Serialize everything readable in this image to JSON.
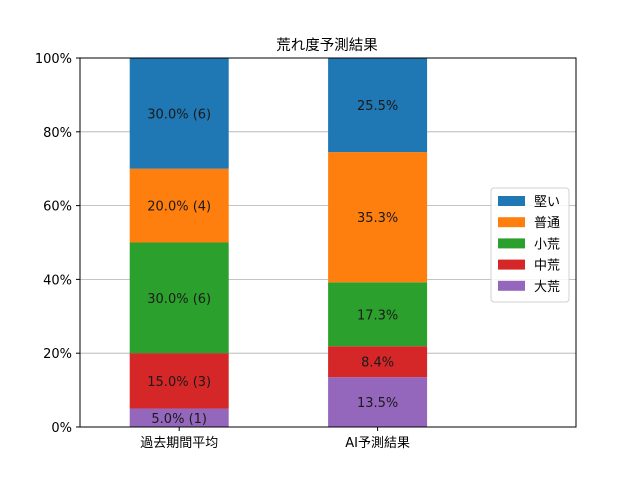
{
  "chart_data": {
    "type": "bar",
    "stacked": true,
    "title": "荒れ度予測結果",
    "xlabel": "",
    "ylabel": "",
    "ylim": [
      0,
      100
    ],
    "y_tick_values": [
      0,
      20,
      40,
      60,
      80,
      100
    ],
    "y_tick_labels": [
      "0%",
      "20%",
      "40%",
      "60%",
      "80%",
      "100%"
    ],
    "grid": "horizontal",
    "legend_position": "center-right",
    "categories": [
      "過去期間平均",
      "AI予測結果"
    ],
    "series": [
      {
        "name": "大荒",
        "color": "#9467bd",
        "values": [
          5.0,
          13.5
        ],
        "labels": [
          "5.0% (1)",
          "13.5%"
        ]
      },
      {
        "name": "中荒",
        "color": "#d62728",
        "values": [
          15.0,
          8.4
        ],
        "labels": [
          "15.0% (3)",
          "8.4%"
        ]
      },
      {
        "name": "小荒",
        "color": "#2ca02c",
        "values": [
          30.0,
          17.3
        ],
        "labels": [
          "30.0% (6)",
          "17.3%"
        ]
      },
      {
        "name": "普通",
        "color": "#ff7f0e",
        "values": [
          20.0,
          35.3
        ],
        "labels": [
          "20.0% (4)",
          "35.3%"
        ]
      },
      {
        "name": "堅い",
        "color": "#1f77b4",
        "values": [
          30.0,
          25.5
        ],
        "labels": [
          "30.0% (6)",
          "25.5%"
        ]
      }
    ],
    "legend_order": [
      "堅い",
      "普通",
      "小荒",
      "中荒",
      "大荒"
    ]
  }
}
